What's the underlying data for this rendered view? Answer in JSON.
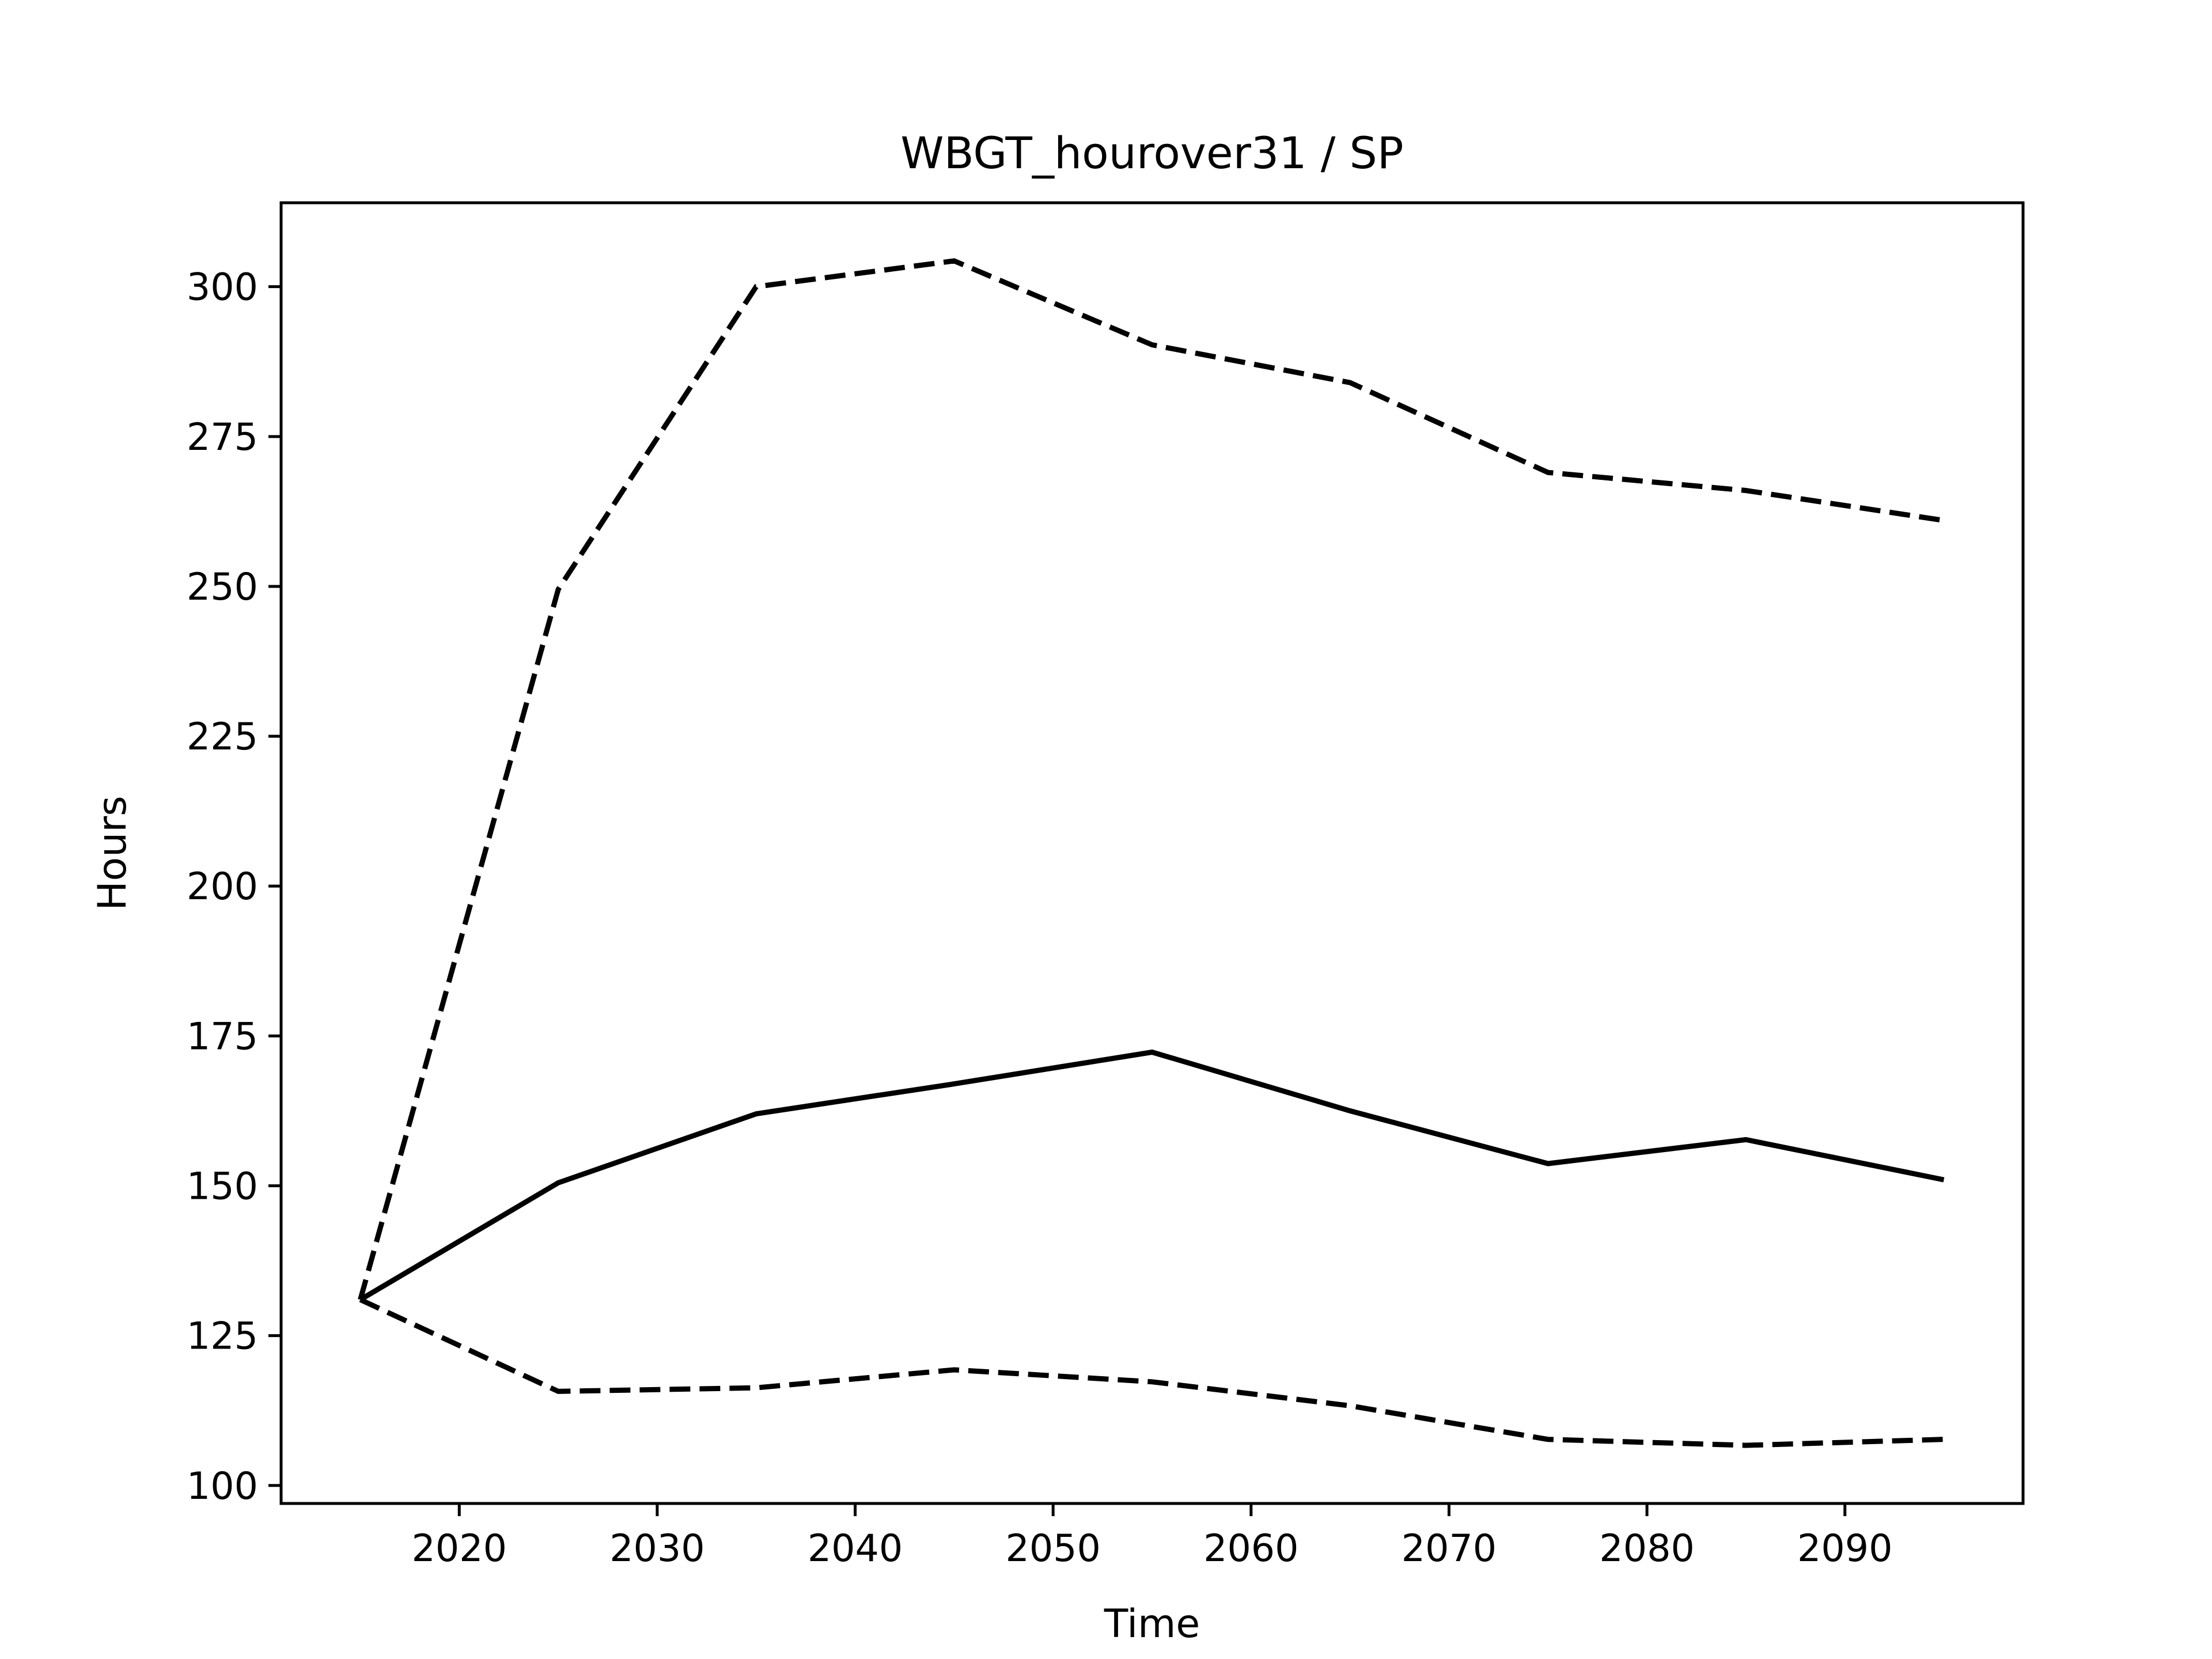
{
  "chart_data": {
    "type": "line",
    "title": "WBGT_hourover31 / SP",
    "xlabel": "Time",
    "ylabel": "Hours",
    "xlim": [
      2011,
      2099
    ],
    "ylim": [
      97,
      314
    ],
    "xticks": [
      2020,
      2030,
      2040,
      2050,
      2060,
      2070,
      2080,
      2090
    ],
    "yticks": [
      100,
      125,
      150,
      175,
      200,
      225,
      250,
      275,
      300
    ],
    "grid": false,
    "series": [
      {
        "style": "solid",
        "color": "#000000",
        "x": [
          2015,
          2025,
          2035,
          2045,
          2055,
          2065,
          2075,
          2085,
          2095
        ],
        "y": [
          131,
          150.5,
          162,
          167,
          172.3,
          162.5,
          153.7,
          157.7,
          151
        ]
      },
      {
        "style": "dashed",
        "color": "#000000",
        "x": [
          2015,
          2025,
          2035,
          2045,
          2055,
          2065,
          2075,
          2085,
          2095
        ],
        "y": [
          131,
          249.5,
          300,
          304.3,
          290.3,
          284,
          269,
          266,
          261
        ]
      },
      {
        "style": "dashed",
        "color": "#000000",
        "x": [
          2015,
          2025,
          2035,
          2045,
          2055,
          2065,
          2075,
          2085,
          2095
        ],
        "y": [
          131,
          115.7,
          116.3,
          119.3,
          117.3,
          113.3,
          107.7,
          106.7,
          107.7
        ]
      }
    ]
  }
}
